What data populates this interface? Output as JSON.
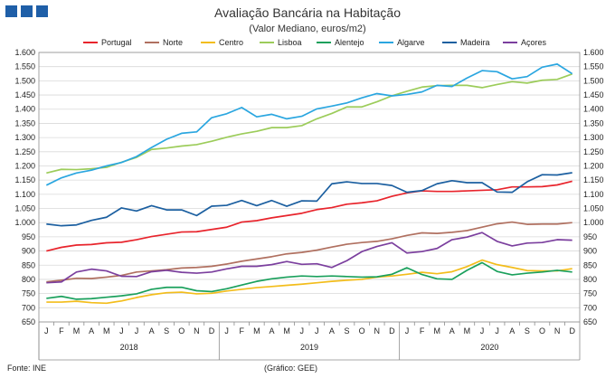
{
  "header": {
    "logo": "ine-logo-squares"
  },
  "footer": {
    "source": "Fonte: INE",
    "credit": "(Gráfico: GEE)"
  },
  "chart_data": {
    "type": "line",
    "title": "Avaliação Bancária na Habitação",
    "subtitle": "(Valor Mediano, euros/m2)",
    "xlabel": "",
    "ylabel": "",
    "ylim": [
      650,
      1600
    ],
    "ytick_step": 50,
    "yticks_both_sides": true,
    "ytick_format": "thousands-dot",
    "grid": "horizontal",
    "legend_position": "top",
    "categories": [
      "J",
      "F",
      "M",
      "A",
      "M",
      "J",
      "J",
      "A",
      "S",
      "O",
      "N",
      "D",
      "J",
      "F",
      "M",
      "A",
      "M",
      "J",
      "J",
      "A",
      "S",
      "O",
      "N",
      "D",
      "J",
      "F",
      "M",
      "A",
      "M",
      "J",
      "J",
      "A",
      "S",
      "O",
      "N",
      "D"
    ],
    "year_labels": [
      "2018",
      "2019",
      "2020"
    ],
    "series": [
      {
        "name": "Portugal",
        "color": "#e8242c",
        "values": [
          900,
          913,
          921,
          923,
          929,
          931,
          940,
          951,
          959,
          967,
          968,
          976,
          984,
          1002,
          1007,
          1017,
          1025,
          1033,
          1046,
          1053,
          1065,
          1070,
          1077,
          1093,
          1105,
          1112,
          1110,
          1110,
          1112,
          1114,
          1116,
          1126,
          1126,
          1127,
          1133,
          1146
        ]
      },
      {
        "name": "Norte",
        "color": "#b07060",
        "values": [
          791,
          797,
          804,
          803,
          808,
          814,
          826,
          830,
          834,
          840,
          842,
          846,
          854,
          864,
          872,
          880,
          890,
          895,
          903,
          914,
          924,
          930,
          934,
          943,
          955,
          964,
          962,
          966,
          972,
          984,
          996,
          1002,
          994,
          995,
          995,
          1000
        ]
      },
      {
        "name": "Centro",
        "color": "#f3bd1b",
        "values": [
          720,
          720,
          723,
          718,
          716,
          724,
          736,
          746,
          753,
          755,
          749,
          751,
          759,
          765,
          771,
          775,
          779,
          783,
          788,
          793,
          797,
          800,
          808,
          812,
          818,
          825,
          820,
          827,
          845,
          868,
          852,
          842,
          831,
          830,
          830,
          838
        ]
      },
      {
        "name": "Lisboa",
        "color": "#9ccc5a",
        "values": [
          1175,
          1188,
          1187,
          1190,
          1195,
          1213,
          1230,
          1258,
          1263,
          1270,
          1275,
          1287,
          1301,
          1313,
          1322,
          1335,
          1335,
          1342,
          1366,
          1385,
          1408,
          1408,
          1426,
          1447,
          1463,
          1478,
          1483,
          1484,
          1484,
          1476,
          1487,
          1497,
          1492,
          1502,
          1505,
          1524
        ]
      },
      {
        "name": "Alentejo",
        "color": "#1aa05c",
        "values": [
          733,
          740,
          730,
          732,
          737,
          742,
          749,
          765,
          772,
          772,
          760,
          757,
          767,
          780,
          793,
          802,
          808,
          812,
          810,
          812,
          810,
          808,
          809,
          818,
          841,
          817,
          802,
          800,
          832,
          859,
          828,
          816,
          822,
          826,
          832,
          826
        ]
      },
      {
        "name": "Algarve",
        "color": "#2aa6e0",
        "values": [
          1132,
          1158,
          1175,
          1185,
          1200,
          1212,
          1233,
          1265,
          1294,
          1315,
          1320,
          1370,
          1384,
          1406,
          1373,
          1382,
          1366,
          1375,
          1401,
          1411,
          1422,
          1440,
          1455,
          1447,
          1452,
          1461,
          1484,
          1480,
          1510,
          1536,
          1532,
          1507,
          1515,
          1548,
          1559,
          1525
        ]
      },
      {
        "name": "Madeira",
        "color": "#1b5fa0",
        "values": [
          995,
          989,
          992,
          1008,
          1019,
          1052,
          1041,
          1060,
          1045,
          1045,
          1025,
          1058,
          1061,
          1078,
          1060,
          1078,
          1058,
          1077,
          1076,
          1137,
          1144,
          1138,
          1138,
          1131,
          1107,
          1113,
          1137,
          1148,
          1141,
          1141,
          1108,
          1107,
          1144,
          1169,
          1168,
          1176
        ]
      },
      {
        "name": "Açores",
        "color": "#7b3f9e",
        "values": [
          788,
          791,
          826,
          836,
          830,
          811,
          810,
          827,
          832,
          825,
          822,
          826,
          837,
          846,
          846,
          852,
          863,
          853,
          855,
          842,
          866,
          898,
          916,
          929,
          893,
          898,
          909,
          940,
          949,
          965,
          934,
          918,
          928,
          930,
          940,
          938
        ]
      }
    ]
  }
}
